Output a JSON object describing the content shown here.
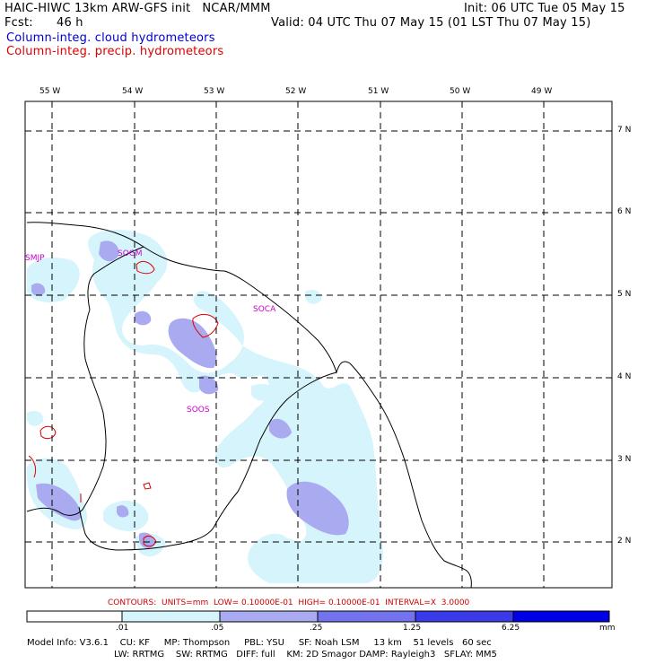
{
  "header": {
    "title_left": "HAIC-HIWC 13km ARW-GFS init   NCAR/MMM",
    "init": "Init: 06 UTC Tue 05 May 15",
    "fcst_label": "Fcst:",
    "fcst_value": "46 h",
    "valid": "Valid: 04 UTC Thu 07 May 15 (01 LST Thu 07 May 15)",
    "legend_cloud": "Column-integ. cloud hydrometeors",
    "legend_precip": "Column-integ. precip. hydrometeors"
  },
  "colors": {
    "cloud_legend": "#0000cc",
    "precip_legend": "#dd0000",
    "shade_1": "#d6f4fb",
    "shade_2": "#aaaaf0",
    "shade_3": "#7373ee",
    "shade_4": "#3a3ae8",
    "shade_5": "#0000e6",
    "station_label": "#cc00cc",
    "contours_info": "#cc0000"
  },
  "map": {
    "lon_labels": [
      "55 W",
      "54 W",
      "53 W",
      "52 W",
      "51 W",
      "50 W",
      "49 W"
    ],
    "lat_labels": [
      "7 N",
      "6 N",
      "5 N",
      "4 N",
      "3 N",
      "2 N"
    ],
    "stations": [
      "SMJP",
      "SOGM",
      "SOCA",
      "SOOS"
    ]
  },
  "footer": {
    "contours": "CONTOURS:  UNITS=mm  LOW= 0.10000E-01  HIGH= 0.10000E-01  INTERVAL=X  3.0000",
    "colorbar_ticks": [
      ".01",
      ".05",
      ".25",
      "1.25",
      "6.25"
    ],
    "colorbar_unit": "mm",
    "model_line1": "Model Info: V3.6.1    CU: KF     MP: Thompson     PBL: YSU     SF: Noah LSM     13 km    51 levels   60 sec",
    "model_line2": "LW: RRTMG    SW: RRTMG   DIFF: full    KM: 2D Smagor DAMP: Rayleigh3   SFLAY: MM5"
  }
}
